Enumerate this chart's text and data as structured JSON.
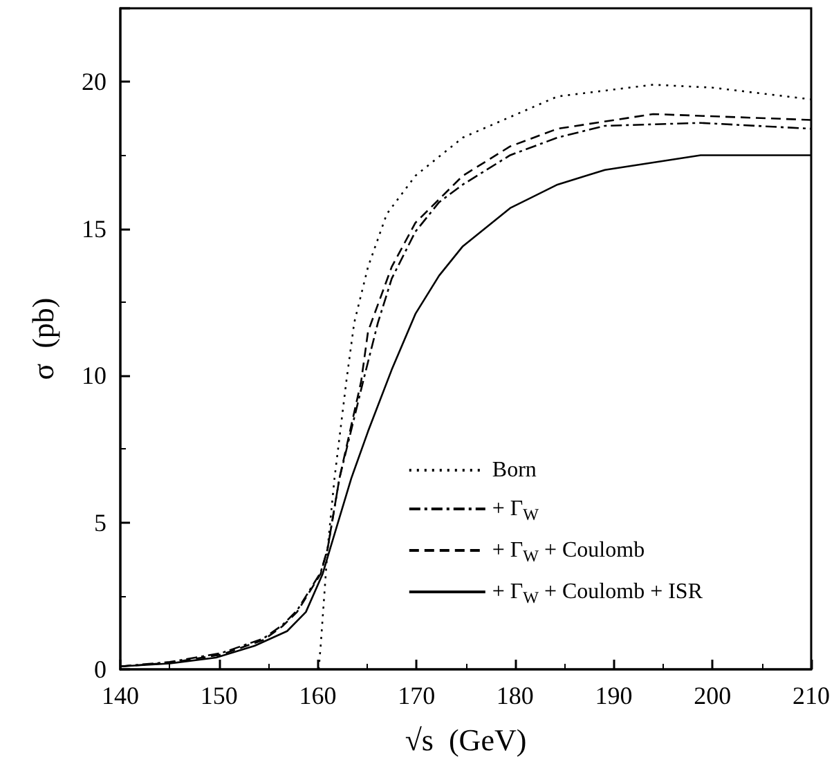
{
  "chart_data": {
    "type": "line",
    "xlabel": "√s  (GeV)",
    "ylabel": "σ  (pb)",
    "xlim": [
      140,
      210
    ],
    "xticks": [
      140,
      150,
      160,
      170,
      180,
      190,
      200,
      210
    ],
    "ylim": [
      0,
      22.5
    ],
    "yticks": [
      0,
      5,
      10,
      15,
      20
    ],
    "grid": false,
    "legend": "bottom right",
    "marker": "none",
    "series": [
      {
        "name": "Born",
        "color": "#000000",
        "line_style": "dotted",
        "x": [
          160.1,
          160.3,
          161.0,
          161.7,
          162.9,
          163.7,
          165.1,
          167,
          169.9,
          174.7,
          184.3,
          194,
          200,
          210
        ],
        "values": [
          0,
          0.8,
          4.1,
          6.5,
          9.8,
          11.8,
          13.7,
          15.5,
          16.8,
          18.1,
          19.5,
          19.9,
          19.8,
          19.4
        ]
      },
      {
        "name": "+ Γ$_{W}$",
        "color": "#000000",
        "line_style": "dashdot",
        "x": [
          140,
          145,
          150.2,
          154.5,
          156.4,
          157.9,
          160.3,
          161.0,
          162.2,
          164.6,
          166.1,
          167.5,
          169.9,
          172.3,
          174.7,
          179.5,
          184.3,
          189.1,
          198.8,
          210
        ],
        "values": [
          0.1,
          0.25,
          0.55,
          1.05,
          1.5,
          2.0,
          3.3,
          4.1,
          6.5,
          9.8,
          11.8,
          13.3,
          14.9,
          15.9,
          16.5,
          17.5,
          18.1,
          18.5,
          18.6,
          18.4
        ]
      },
      {
        "name": "+ Γ$_{W}$ + Coulomb",
        "color": "#000000",
        "line_style": "dashed",
        "x": [
          140,
          145,
          150.2,
          154.5,
          156.4,
          157.9,
          160.3,
          161.0,
          162.2,
          164.4,
          165.1,
          167.5,
          169.9,
          174.7,
          179.5,
          184.3,
          194,
          210
        ],
        "values": [
          0.1,
          0.22,
          0.5,
          1.0,
          1.46,
          1.95,
          3.25,
          4.1,
          6.5,
          9.8,
          11.5,
          13.7,
          15.2,
          16.8,
          17.8,
          18.4,
          18.9,
          18.7
        ]
      },
      {
        "name": "+ Γ$_{W}$ + Coulomb + ISR",
        "color": "#000000",
        "line_style": "solid",
        "x": [
          140,
          145,
          149.7,
          153.6,
          156.9,
          158.8,
          160.5,
          161.25,
          163.4,
          165.1,
          167.5,
          169.9,
          172.3,
          174.7,
          179.5,
          184.3,
          189.1,
          198.8,
          210
        ],
        "values": [
          0.1,
          0.2,
          0.4,
          0.8,
          1.3,
          1.95,
          3.25,
          4.1,
          6.5,
          8.1,
          10.2,
          12.1,
          13.4,
          14.4,
          15.7,
          16.5,
          17.0,
          17.5,
          17.5
        ]
      }
    ]
  }
}
